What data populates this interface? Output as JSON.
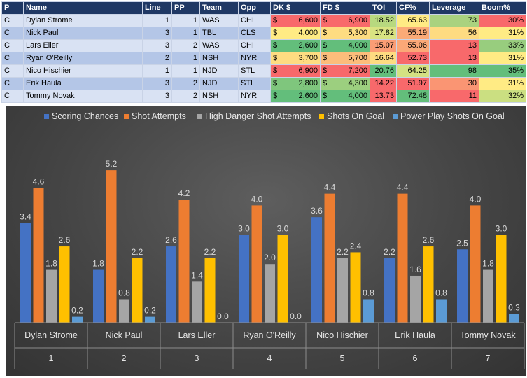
{
  "table": {
    "columns": [
      "P",
      "Name",
      "Line",
      "PP",
      "Team",
      "Opp",
      "DK $",
      "FD $",
      "TOI",
      "CF%",
      "Leverage",
      "Boom%"
    ],
    "rows": [
      {
        "p": "C",
        "name": "Dylan Strome",
        "line": "1",
        "pp": "1",
        "team": "WAS",
        "opp": "CHI",
        "dk_sym": "$",
        "dk": "6,600",
        "fd_sym": "$",
        "fd": "6,900",
        "toi": "18.52",
        "cf": "65.63",
        "leverage": "73",
        "boom": "30%",
        "colors": {
          "dk": "#f8696b",
          "fd": "#f8696b",
          "toi": "#b8d97f",
          "cf": "#ffeb84",
          "leverage": "#a9d27f",
          "boom": "#f8696b"
        }
      },
      {
        "p": "C",
        "name": "Nick Paul",
        "line": "3",
        "pp": "1",
        "team": "TBL",
        "opp": "CLS",
        "dk_sym": "$",
        "dk": "4,000",
        "fd_sym": "$",
        "fd": "5,300",
        "toi": "17.82",
        "cf": "55.19",
        "leverage": "56",
        "boom": "31%",
        "colors": {
          "dk": "#ffeb84",
          "fd": "#fedc81",
          "toi": "#d9e382",
          "cf": "#fbaa77",
          "leverage": "#fedb81",
          "boom": "#ffeb84"
        }
      },
      {
        "p": "C",
        "name": "Lars Eller",
        "line": "3",
        "pp": "2",
        "team": "WAS",
        "opp": "CHI",
        "dk_sym": "$",
        "dk": "2,600",
        "fd_sym": "$",
        "fd": "4,000",
        "toi": "15.07",
        "cf": "55.06",
        "leverage": "13",
        "boom": "33%",
        "colors": {
          "dk": "#63be7b",
          "fd": "#63be7b",
          "toi": "#fa9d75",
          "cf": "#fba877",
          "leverage": "#f8696b",
          "boom": "#98cd7e"
        }
      },
      {
        "p": "C",
        "name": "Ryan O'Reilly",
        "line": "2",
        "pp": "1",
        "team": "NSH",
        "opp": "NYR",
        "dk_sym": "$",
        "dk": "3,700",
        "fd_sym": "$",
        "fd": "5,700",
        "toi": "16.64",
        "cf": "52.73",
        "leverage": "13",
        "boom": "31%",
        "colors": {
          "dk": "#fedc81",
          "fd": "#fcbd7b",
          "toi": "#fedb81",
          "cf": "#f8696b",
          "leverage": "#f8696b",
          "boom": "#ffeb84"
        }
      },
      {
        "p": "C",
        "name": "Nico Hischier",
        "line": "1",
        "pp": "1",
        "team": "NJD",
        "opp": "STL",
        "dk_sym": "$",
        "dk": "6,900",
        "fd_sym": "$",
        "fd": "7,200",
        "toi": "20.76",
        "cf": "64.25",
        "leverage": "98",
        "boom": "35%",
        "colors": {
          "dk": "#f8696b",
          "fd": "#f8696b",
          "toi": "#63be7b",
          "cf": "#d4e182",
          "leverage": "#63be7b",
          "boom": "#63be7b"
        }
      },
      {
        "p": "C",
        "name": "Erik Haula",
        "line": "3",
        "pp": "2",
        "team": "NJD",
        "opp": "STL",
        "dk_sym": "$",
        "dk": "2,800",
        "fd_sym": "$",
        "fd": "4,300",
        "toi": "14.22",
        "cf": "51.97",
        "leverage": "30",
        "boom": "31%",
        "colors": {
          "dk": "#7fc67d",
          "fd": "#9ccf7f",
          "toi": "#f8696b",
          "cf": "#f8696b",
          "leverage": "#fa9573",
          "boom": "#ffeb84"
        }
      },
      {
        "p": "C",
        "name": "Tommy Novak",
        "line": "3",
        "pp": "2",
        "team": "NSH",
        "opp": "NYR",
        "dk_sym": "$",
        "dk": "2,600",
        "fd_sym": "$",
        "fd": "4,000",
        "toi": "13.73",
        "cf": "72.48",
        "leverage": "11",
        "boom": "32%",
        "colors": {
          "dk": "#63be7b",
          "fd": "#63be7b",
          "toi": "#f8696b",
          "cf": "#63be7b",
          "leverage": "#f8696b",
          "boom": "#cbdf81"
        }
      }
    ]
  },
  "chart_data": {
    "type": "bar",
    "categories": [
      {
        "name": "Dylan Strome",
        "index": "1"
      },
      {
        "name": "Nick Paul",
        "index": "2"
      },
      {
        "name": "Lars Eller",
        "index": "3"
      },
      {
        "name": "Ryan O'Reilly",
        "index": "4"
      },
      {
        "name": "Nico Hischier",
        "index": "5"
      },
      {
        "name": "Erik Haula",
        "index": "6"
      },
      {
        "name": "Tommy Novak",
        "index": "7"
      }
    ],
    "series": [
      {
        "name": "Scoring Chances",
        "color": "#4472c4",
        "values": [
          3.4,
          1.8,
          2.6,
          3.0,
          3.6,
          2.2,
          2.5
        ]
      },
      {
        "name": "Shot Attempts",
        "color": "#ed7d31",
        "values": [
          4.6,
          5.2,
          4.2,
          4.0,
          4.4,
          4.4,
          4.0
        ]
      },
      {
        "name": "High Danger Shot Attempts",
        "color": "#a5a5a5",
        "values": [
          1.8,
          0.8,
          1.4,
          2.0,
          2.2,
          1.6,
          1.8
        ]
      },
      {
        "name": "Shots On Goal",
        "color": "#ffc000",
        "values": [
          2.6,
          2.2,
          2.2,
          3.0,
          2.4,
          2.6,
          3.0
        ]
      },
      {
        "name": "Power Play Shots On Goal",
        "color": "#5b9bd5",
        "values": [
          0.2,
          0.2,
          0.0,
          0.0,
          0.8,
          0.8,
          0.3
        ]
      }
    ],
    "labels": [
      [
        "3.4",
        "4.6",
        "1.8",
        "2.6",
        "0.2"
      ],
      [
        "1.8",
        "5.2",
        "0.8",
        "2.2",
        "0.2"
      ],
      [
        "2.6",
        "4.2",
        "1.4",
        "2.2",
        "0.0"
      ],
      [
        "3.0",
        "4.0",
        "2.0",
        "3.0",
        "0.0"
      ],
      [
        "3.6",
        "4.4",
        "2.2",
        "2.4",
        "0.8"
      ],
      [
        "2.2",
        "4.4",
        "1.6",
        "2.6",
        "0.8"
      ],
      [
        "2.5",
        "4.0",
        "1.8",
        "3.0",
        "0.3"
      ]
    ],
    "ylim": [
      0,
      6
    ],
    "grid": false,
    "legend": "top",
    "title": "",
    "xlabel": "",
    "ylabel": ""
  }
}
